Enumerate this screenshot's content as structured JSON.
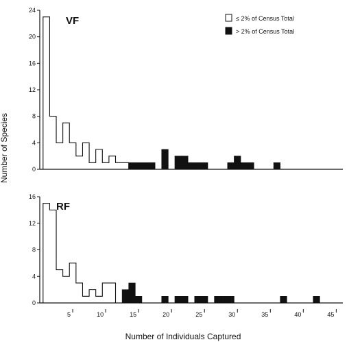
{
  "chart_data": [
    {
      "type": "bar",
      "panel": "VF",
      "xlabel": "Number of Individuals Captured",
      "ylabel": "Number of Species",
      "xlim": [
        0,
        46
      ],
      "ylim": [
        0,
        24
      ],
      "yticks": [
        0,
        4,
        8,
        12,
        16,
        20,
        24
      ],
      "series": [
        {
          "name": "≤ 2% of Census Total",
          "fill": "open",
          "x": [
            1,
            2,
            3,
            4,
            5,
            6,
            7,
            8,
            9,
            10,
            11,
            12,
            13
          ],
          "values": [
            23,
            8,
            4,
            7,
            4,
            2,
            4,
            1,
            3,
            1,
            2,
            1,
            1
          ]
        },
        {
          "name": "> 2% of Census Total",
          "fill": "solid",
          "x": [
            14,
            15,
            16,
            17,
            19,
            21,
            22,
            23,
            24,
            25,
            29,
            30,
            31,
            32,
            36
          ],
          "values": [
            1,
            1,
            1,
            1,
            3,
            2,
            2,
            1,
            1,
            1,
            1,
            2,
            1,
            1,
            1
          ]
        }
      ]
    },
    {
      "type": "bar",
      "panel": "RF",
      "xlabel": "Number of Individuals Captured",
      "ylabel": "Number of Species",
      "xlim": [
        0,
        46
      ],
      "ylim": [
        0,
        16
      ],
      "yticks": [
        0,
        4,
        8,
        12,
        16
      ],
      "xticks": [
        5,
        10,
        15,
        20,
        25,
        30,
        35,
        40,
        45
      ],
      "series": [
        {
          "name": "≤ 2% of Census Total",
          "fill": "open",
          "x": [
            1,
            2,
            3,
            4,
            5,
            6,
            7,
            8,
            9,
            10,
            11
          ],
          "values": [
            15,
            14,
            5,
            4,
            6,
            3,
            1,
            2,
            1,
            3,
            3
          ]
        },
        {
          "name": "> 2% of Census Total",
          "fill": "solid",
          "x": [
            13,
            14,
            15,
            19,
            21,
            22,
            24,
            25,
            27,
            28,
            29,
            37,
            42
          ],
          "values": [
            2,
            3,
            1,
            1,
            1,
            1,
            1,
            1,
            1,
            1,
            1,
            1,
            1
          ]
        }
      ]
    }
  ],
  "colors": {
    "ink": "#111111",
    "background": "#ffffff"
  }
}
